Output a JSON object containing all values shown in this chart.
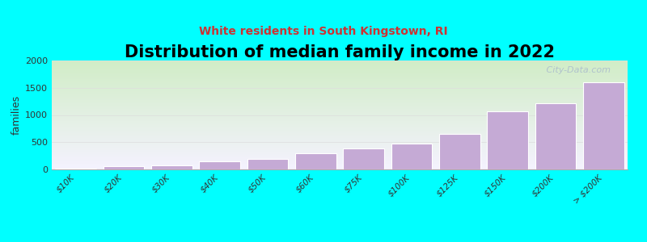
{
  "title": "Distribution of median family income in 2022",
  "subtitle": "White residents in South Kingstown, RI",
  "categories": [
    "$10K",
    "$20K",
    "$30K",
    "$40K",
    "$50K",
    "$60K",
    "$75K",
    "$100K",
    "$125K",
    "$150K",
    "$200K",
    "> $200K"
  ],
  "values": [
    15,
    60,
    80,
    150,
    200,
    290,
    380,
    480,
    650,
    1060,
    1220,
    1600
  ],
  "bar_color": "#c5aad5",
  "ylabel": "families",
  "ylim": [
    0,
    2000
  ],
  "yticks": [
    0,
    500,
    1000,
    1500,
    2000
  ],
  "background_color": "#00ffff",
  "plot_bg_top": "#cce8bb",
  "plot_bg_bottom": "#f0f0ff",
  "title_fontsize": 15,
  "subtitle_fontsize": 10,
  "subtitle_color": "#cc3333",
  "watermark": " City-Data.com",
  "watermark_color": "#aabbcc"
}
